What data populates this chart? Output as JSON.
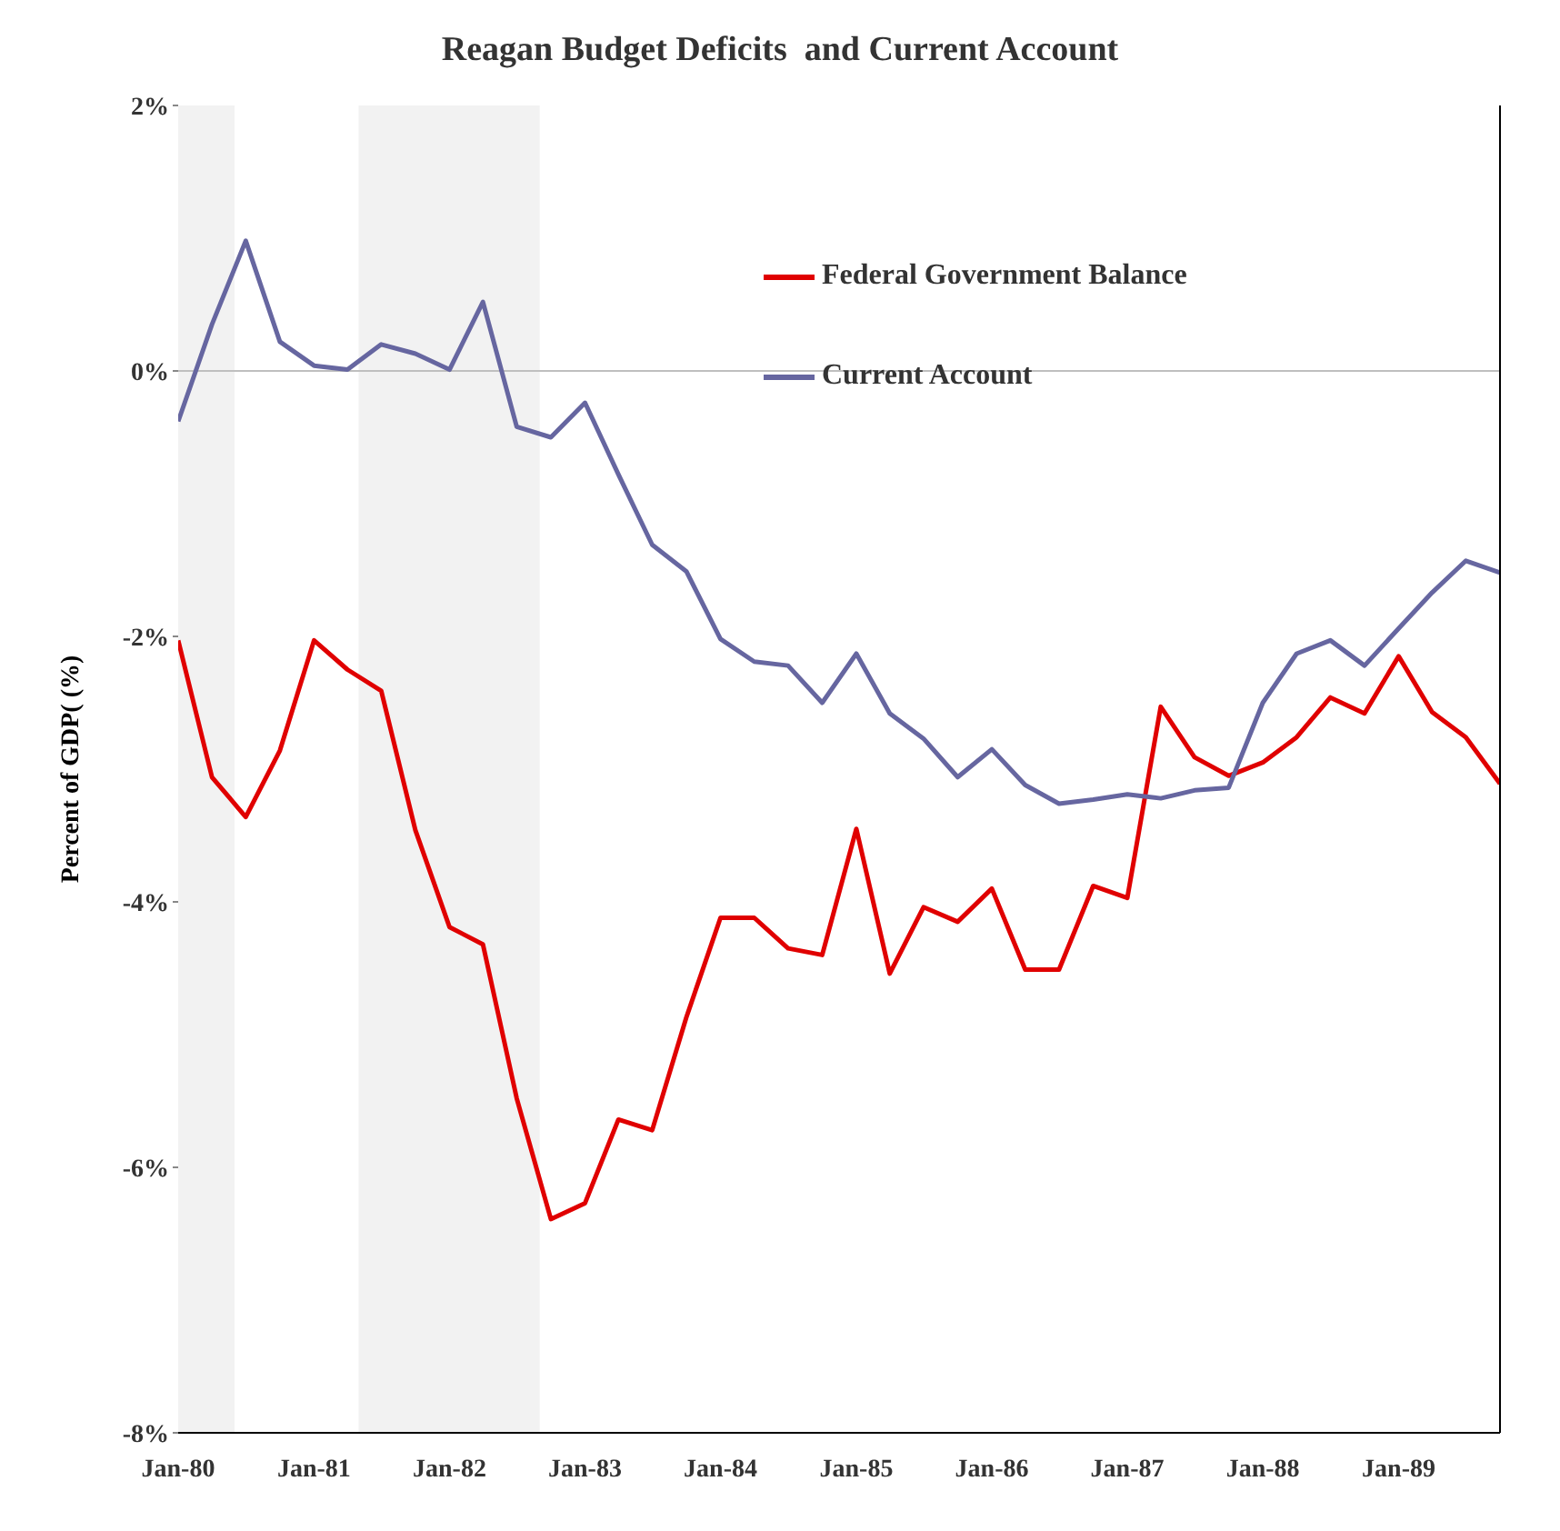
{
  "chart_data": {
    "type": "line",
    "title": "Reagan Budget Deficits  and Current Account",
    "ylabel": "Percent of GDP( (%)",
    "x": [
      "1980-01",
      "1980-04",
      "1980-07",
      "1980-10",
      "1981-01",
      "1981-04",
      "1981-07",
      "1981-10",
      "1982-01",
      "1982-04",
      "1982-07",
      "1982-10",
      "1983-01",
      "1983-04",
      "1983-07",
      "1983-10",
      "1984-01",
      "1984-04",
      "1984-07",
      "1984-10",
      "1985-01",
      "1985-04",
      "1985-07",
      "1985-10",
      "1986-01",
      "1986-04",
      "1986-07",
      "1986-10",
      "1987-01",
      "1987-04",
      "1987-07",
      "1987-10",
      "1988-01",
      "1988-04",
      "1988-07",
      "1988-10",
      "1989-01",
      "1989-04",
      "1989-07",
      "1989-10"
    ],
    "series": [
      {
        "name": "Federal Government Balance",
        "color": "#e00000",
        "values": [
          -2.03,
          -3.06,
          -3.36,
          -2.86,
          -2.03,
          -2.25,
          -2.41,
          -3.46,
          -4.19,
          -4.32,
          -5.48,
          -6.39,
          -6.27,
          -5.64,
          -5.72,
          -4.87,
          -4.12,
          -4.12,
          -4.35,
          -4.4,
          -3.45,
          -4.54,
          -4.04,
          -4.15,
          -3.9,
          -4.51,
          -4.51,
          -3.88,
          -3.97,
          -2.53,
          -2.91,
          -3.05,
          -2.95,
          -2.76,
          -2.46,
          -2.58,
          -2.15,
          -2.57,
          -2.76,
          -3.11
        ]
      },
      {
        "name": "Current Account",
        "color": "#6666a0",
        "values": [
          -0.38,
          0.35,
          0.98,
          0.22,
          0.04,
          0.01,
          0.2,
          0.13,
          0.01,
          0.52,
          -0.42,
          -0.5,
          -0.24,
          -0.78,
          -1.31,
          -1.51,
          -2.02,
          -2.19,
          -2.22,
          -2.5,
          -2.13,
          -2.58,
          -2.77,
          -3.06,
          -2.85,
          -3.12,
          -3.26,
          -3.23,
          -3.19,
          -3.22,
          -3.16,
          -3.14,
          -2.5,
          -2.13,
          -2.03,
          -2.22,
          -1.94,
          -1.67,
          -1.43,
          -1.52
        ]
      }
    ],
    "xlim": [
      "1980-01",
      "1989-10"
    ],
    "xticks": [
      {
        "value": "1980-01",
        "label": "Jan-80"
      },
      {
        "value": "1981-01",
        "label": "Jan-81"
      },
      {
        "value": "1982-01",
        "label": "Jan-82"
      },
      {
        "value": "1983-01",
        "label": "Jan-83"
      },
      {
        "value": "1984-01",
        "label": "Jan-84"
      },
      {
        "value": "1985-01",
        "label": "Jan-85"
      },
      {
        "value": "1986-01",
        "label": "Jan-86"
      },
      {
        "value": "1987-01",
        "label": "Jan-87"
      },
      {
        "value": "1988-01",
        "label": "Jan-88"
      },
      {
        "value": "1989-01",
        "label": "Jan-89"
      }
    ],
    "ylim": [
      -8,
      2
    ],
    "yticks": [
      {
        "value": -8,
        "label": "-8%"
      },
      {
        "value": -6,
        "label": "-6%"
      },
      {
        "value": -4,
        "label": "-4%"
      },
      {
        "value": -2,
        "label": "-2%"
      },
      {
        "value": 0,
        "label": "0%"
      },
      {
        "value": 2,
        "label": "2%"
      }
    ],
    "bands": [
      {
        "axis": "x",
        "from": "1980-01",
        "to": "1980-06",
        "color": "#f2f2f2"
      },
      {
        "axis": "x",
        "from": "1981-05",
        "to": "1982-09",
        "color": "#f2f2f2"
      }
    ],
    "ref_lines": [
      {
        "axis": "y",
        "value": 0,
        "color": "#bfbfbf"
      }
    ],
    "legend": "top right",
    "grid": false,
    "marker": "none",
    "line_style": "solid"
  }
}
